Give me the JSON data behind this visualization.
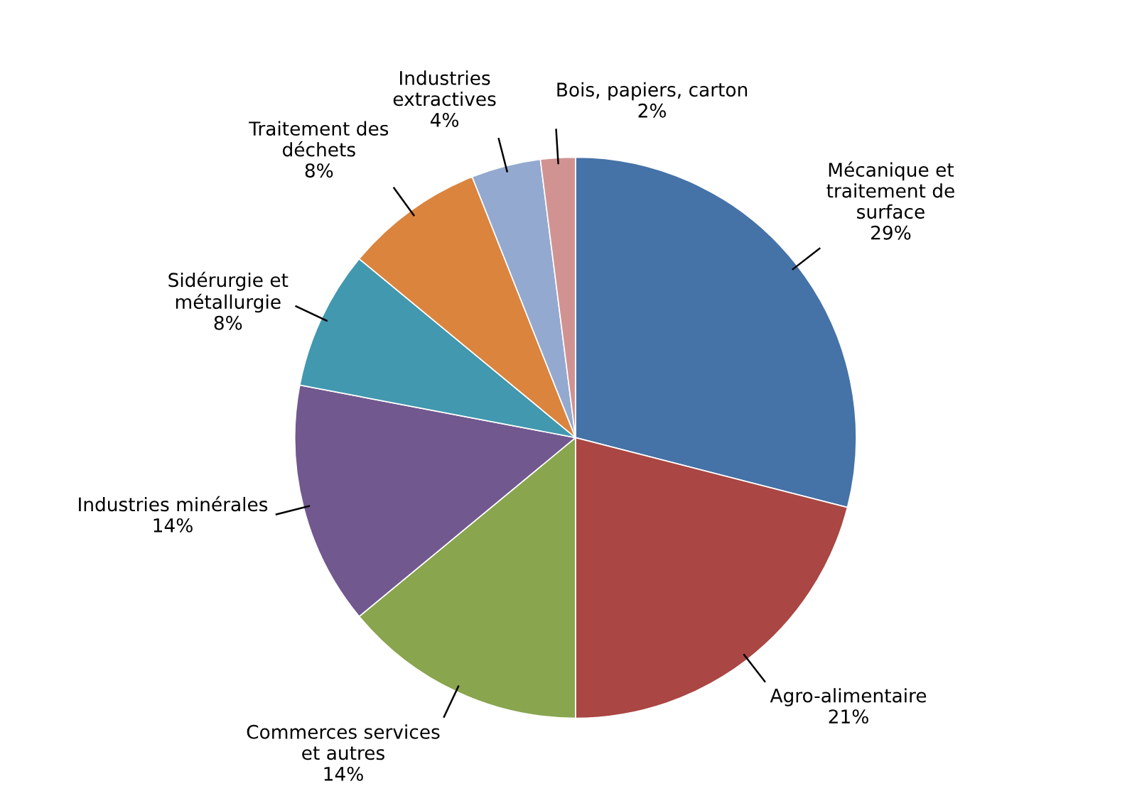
{
  "chart_data": {
    "type": "pie",
    "categories": [
      "Mécanique et\ntraitement de\nsurface",
      "Agro-alimentaire",
      "Commerces services\net autres",
      "Industries minérales",
      "Sidérurgie et\nmétallurgie",
      "Traitement des\ndéchets",
      "Industries\nextractives",
      "Bois, papiers, carton"
    ],
    "values": [
      29,
      21,
      14,
      14,
      8,
      8,
      4,
      2
    ],
    "colors": [
      "#4572a7",
      "#aa4643",
      "#89a54e",
      "#71588f",
      "#4198af",
      "#db843d",
      "#93a9cf",
      "#d19392"
    ],
    "value_labels": [
      "29%",
      "21%",
      "14%",
      "14%",
      "8%",
      "8%",
      "4%",
      "2%"
    ]
  }
}
